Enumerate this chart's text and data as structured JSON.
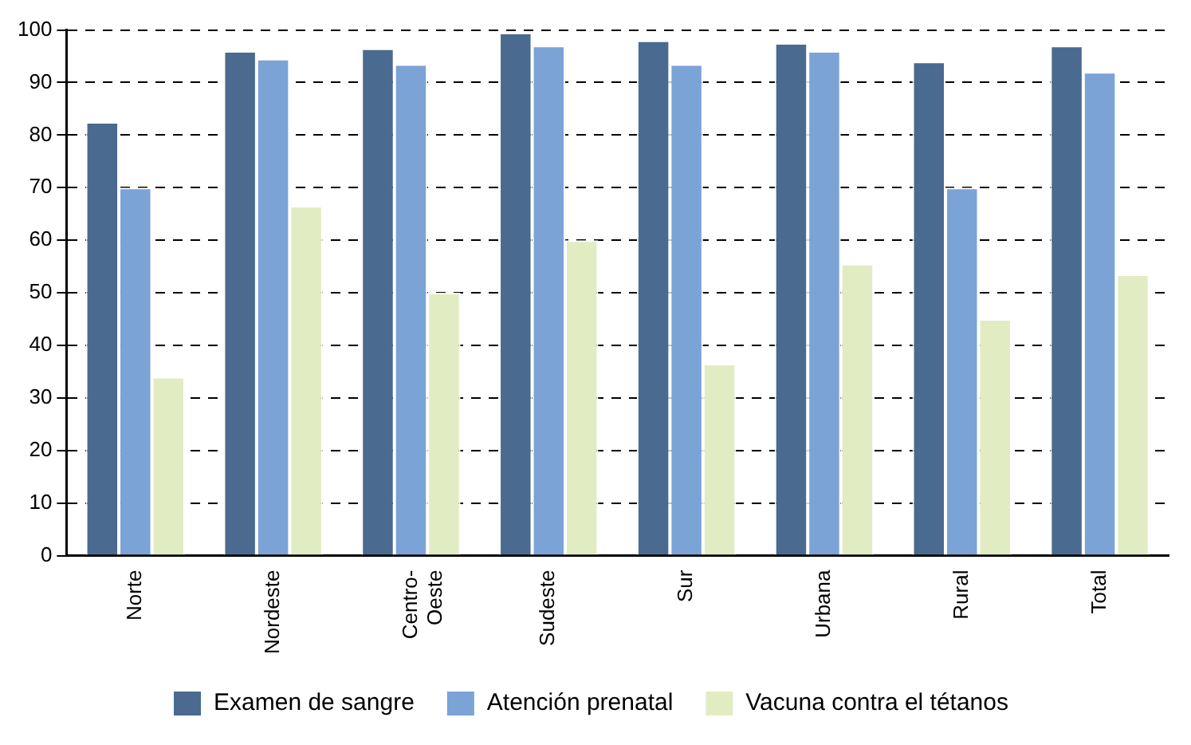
{
  "chart_data": {
    "type": "bar",
    "categories": [
      "Norte",
      "Nordeste",
      "Centro-Oeste",
      "Sudeste",
      "Sur",
      "Urbana",
      "Rural",
      "Total"
    ],
    "series": [
      {
        "name": "Examen de sangre",
        "color": "#4a6a8f",
        "values": [
          82.5,
          96,
          96.5,
          99.5,
          98,
          97.5,
          94,
          97
        ]
      },
      {
        "name": "Atención prenatal",
        "color": "#7ba3d6",
        "values": [
          70,
          94.5,
          93.5,
          97,
          93.5,
          96,
          70,
          92
        ]
      },
      {
        "name": "Vacuna contra el tétanos",
        "color": "#e2ecc3",
        "values": [
          34,
          66.5,
          50,
          60,
          36.5,
          55.5,
          45,
          53.5
        ]
      }
    ],
    "ylim": [
      0,
      100
    ],
    "yticks": [
      0,
      10,
      20,
      30,
      40,
      50,
      60,
      70,
      80,
      90,
      100
    ],
    "grid": "y",
    "legend": "bottom"
  }
}
